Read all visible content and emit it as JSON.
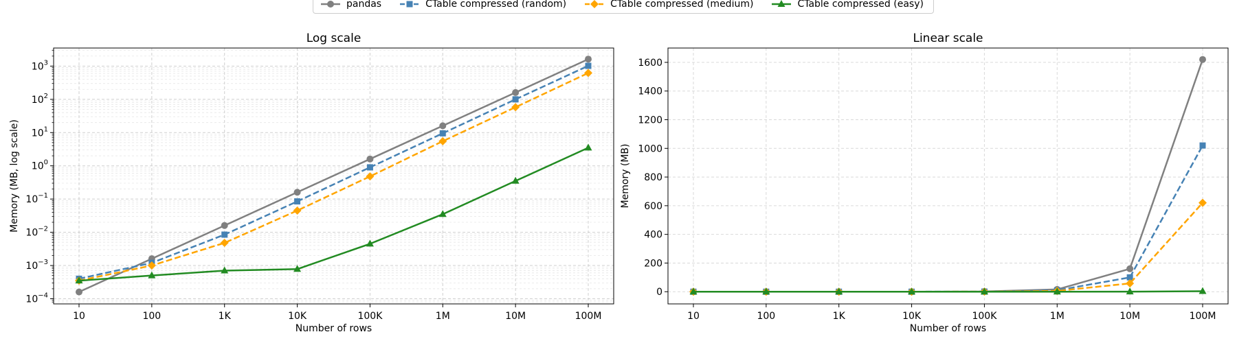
{
  "legend_position": "top-center",
  "chart_data": [
    {
      "type": "line",
      "title": "Log scale",
      "xlabel": "Number of rows",
      "ylabel": "Memory (MB, log scale)",
      "yscale": "log",
      "ylim": [
        7e-05,
        3500
      ],
      "grid": true,
      "categories": [
        "10",
        "100",
        "1K",
        "10K",
        "100K",
        "1M",
        "10M",
        "100M"
      ],
      "y_tick_values": [
        0.0001,
        0.001,
        0.01,
        0.1,
        1,
        10,
        100,
        1000
      ],
      "series": [
        {
          "name": "pandas",
          "color": "#808080",
          "dash": "solid",
          "marker": "circle",
          "values": [
            0.00016,
            0.0016,
            0.016,
            0.16,
            1.6,
            16,
            160,
            1620
          ]
        },
        {
          "name": "CTable compressed (random)",
          "color": "#4682b4",
          "dash": "dashed",
          "marker": "square",
          "values": [
            0.0004,
            0.0012,
            0.0085,
            0.085,
            0.9,
            9.5,
            100,
            1020
          ]
        },
        {
          "name": "CTable compressed (medium)",
          "color": "#ffa500",
          "dash": "dashed",
          "marker": "diamond",
          "values": [
            0.00035,
            0.001,
            0.0048,
            0.045,
            0.48,
            5.5,
            58,
            620
          ]
        },
        {
          "name": "CTable compressed (easy)",
          "color": "#228b22",
          "dash": "solid",
          "marker": "triangle",
          "values": [
            0.00035,
            0.0005,
            0.0007,
            0.00078,
            0.0045,
            0.035,
            0.35,
            3.5
          ]
        }
      ]
    },
    {
      "type": "line",
      "title": "Linear scale",
      "xlabel": "Number of rows",
      "ylabel": "Memory (MB)",
      "yscale": "linear",
      "ylim": [
        -85,
        1700
      ],
      "grid": true,
      "categories": [
        "10",
        "100",
        "1K",
        "10K",
        "100K",
        "1M",
        "10M",
        "100M"
      ],
      "y_ticks": [
        0,
        200,
        400,
        600,
        800,
        1000,
        1200,
        1400,
        1600
      ],
      "series": [
        {
          "name": "pandas",
          "color": "#808080",
          "dash": "solid",
          "marker": "circle",
          "values": [
            0.00016,
            0.0016,
            0.016,
            0.16,
            1.6,
            16,
            160,
            1620
          ]
        },
        {
          "name": "CTable compressed (random)",
          "color": "#4682b4",
          "dash": "dashed",
          "marker": "square",
          "values": [
            0.0004,
            0.0012,
            0.0085,
            0.085,
            0.9,
            9.5,
            100,
            1020
          ]
        },
        {
          "name": "CTable compressed (medium)",
          "color": "#ffa500",
          "dash": "dashed",
          "marker": "diamond",
          "values": [
            0.00035,
            0.001,
            0.0048,
            0.045,
            0.48,
            5.5,
            58,
            620
          ]
        },
        {
          "name": "CTable compressed (easy)",
          "color": "#228b22",
          "dash": "solid",
          "marker": "triangle",
          "values": [
            0.00035,
            0.0005,
            0.0007,
            0.00078,
            0.0045,
            0.035,
            0.35,
            3.5
          ]
        }
      ]
    }
  ]
}
